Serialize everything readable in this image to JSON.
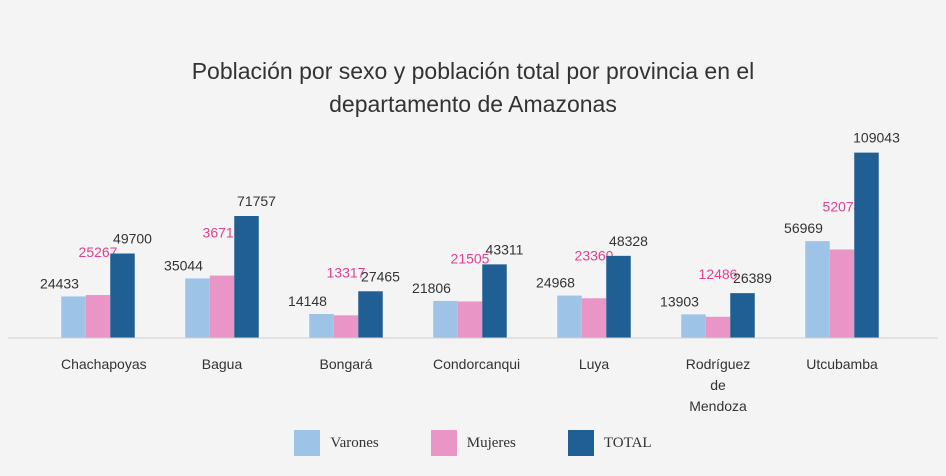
{
  "chart_data": {
    "type": "bar",
    "title": "Población por sexo y población total por provincia en el departamento de Amazonas",
    "categories": [
      "Chachapoyas",
      "Bagua",
      "Bongará",
      "Condorcanqui",
      "Luya",
      "Rodríguez de Mendoza",
      "Utcubamba"
    ],
    "series": [
      {
        "name": "Varones",
        "color": "#9dc3e6",
        "label_color": "#333333",
        "values": [
          24433,
          35044,
          14148,
          21806,
          24968,
          13903,
          56969
        ]
      },
      {
        "name": "Mujeres",
        "color": "#e995c5",
        "label_color": "#e0408f",
        "values": [
          25267,
          36713,
          13317,
          21505,
          23360,
          12486,
          52074
        ]
      },
      {
        "name": "TOTAL",
        "color": "#1f5f94",
        "label_color": "#333333",
        "values": [
          49700,
          71757,
          27465,
          43311,
          48328,
          26389,
          109043
        ]
      }
    ],
    "ylim": [
      0,
      120000
    ],
    "legend": "bottom"
  }
}
